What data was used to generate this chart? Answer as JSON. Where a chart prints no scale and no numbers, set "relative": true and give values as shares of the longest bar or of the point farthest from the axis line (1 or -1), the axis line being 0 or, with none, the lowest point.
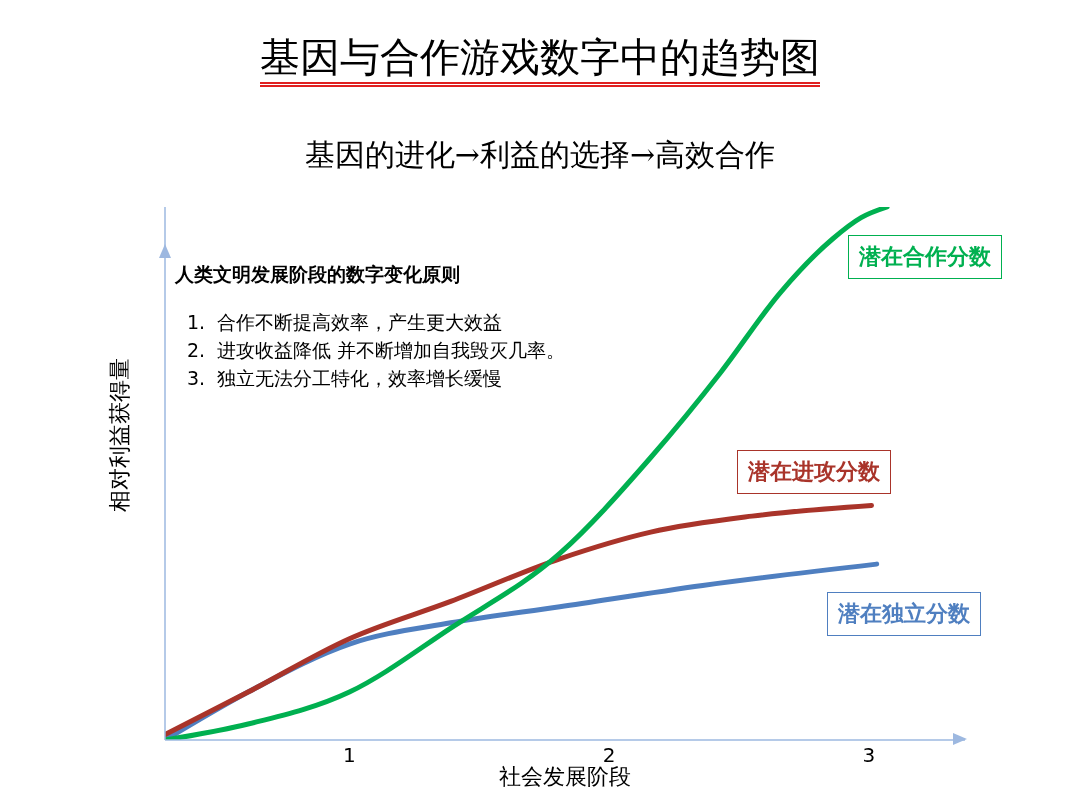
{
  "chart_data": {
    "type": "line",
    "title": "基因与合作游戏数字中的趋势图",
    "subtitle": "基因的进化→利益的选择→高效合作",
    "xlabel": "社会发展阶段",
    "ylabel": "相对利益获得量",
    "relative": true,
    "legend": false,
    "marker": "none",
    "line_style": "solid",
    "grid": false,
    "xlim": [
      0.29,
      3.37
    ],
    "xticks": [
      1,
      2,
      3
    ],
    "annotations": [
      "人类文明发展阶段的数字变化原则",
      "1.  合作不断提高效率，产生更大效益",
      "2.  进攻收益降低 并不断增加自我毁灭几率。",
      "3.  独立无法分工特化，效率增长缓慢"
    ],
    "series": [
      {
        "name": "潜在合作分数",
        "color": "#00b050",
        "x": [
          0.29,
          0.61,
          1.0,
          1.39,
          1.81,
          2.16,
          2.43,
          2.66,
          2.86,
          2.97,
          3.07
        ],
        "values": [
          0,
          0.03,
          0.09,
          0.21,
          0.35,
          0.53,
          0.69,
          0.84,
          0.94,
          0.98,
          1
        ]
      },
      {
        "name": "潜在进攻分数",
        "color": "#a9342a",
        "x": [
          0.29,
          0.61,
          1.0,
          1.39,
          1.81,
          2.16,
          2.55,
          3.01
        ],
        "values": [
          0.01,
          0.09,
          0.19,
          0.26,
          0.34,
          0.39,
          0.42,
          0.44
        ]
      },
      {
        "name": "潜在独立分数",
        "color": "#4f7fc0",
        "x": [
          0.29,
          0.61,
          1.0,
          1.39,
          1.81,
          2.36,
          3.03
        ],
        "values": [
          0,
          0.09,
          0.18,
          0.22,
          0.25,
          0.29,
          0.33
        ]
      }
    ]
  }
}
